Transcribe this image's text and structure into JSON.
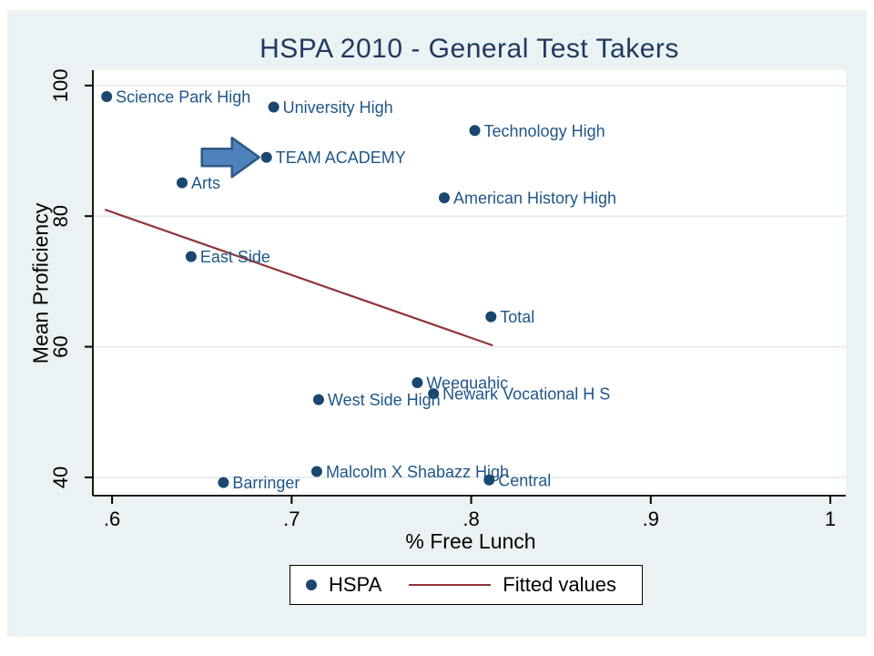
{
  "chart_data": {
    "type": "scatter",
    "title": "HSPA 2010 - General Test Takers",
    "xlabel": "% Free Lunch",
    "ylabel": "Mean Proficiency",
    "xlim": [
      0.5893,
      1.0086
    ],
    "ylim": [
      37.2,
      102.35
    ],
    "x_ticks": [
      ".6",
      ".7",
      ".8",
      ".9",
      "1"
    ],
    "x_tick_values": [
      0.6,
      0.7,
      0.8,
      0.9,
      1.0
    ],
    "y_ticks": [
      "40",
      "60",
      "80",
      "100"
    ],
    "y_tick_values": [
      40,
      60,
      80,
      100
    ],
    "grid": "horizontal-at-y-ticks",
    "series": [
      {
        "name": "HSPA",
        "type": "scatter",
        "marker": "dot",
        "color": "#1a476f",
        "label_color": "#1f5688",
        "points": [
          {
            "label": "Science Park High",
            "x": 0.597,
            "y": 98.3
          },
          {
            "label": "University High",
            "x": 0.69,
            "y": 96.7
          },
          {
            "label": "Technology High",
            "x": 0.802,
            "y": 93.1
          },
          {
            "label": "TEAM ACADEMY",
            "x": 0.686,
            "y": 89.0
          },
          {
            "label": "Arts",
            "x": 0.639,
            "y": 85.1
          },
          {
            "label": "American History High",
            "x": 0.785,
            "y": 82.8
          },
          {
            "label": "East Side",
            "x": 0.644,
            "y": 73.8
          },
          {
            "label": "Total",
            "x": 0.811,
            "y": 64.6
          },
          {
            "label": "Weequahic",
            "x": 0.77,
            "y": 54.5
          },
          {
            "label": "Newark Vocational H S",
            "x": 0.779,
            "y": 52.8
          },
          {
            "label": "West Side High",
            "x": 0.715,
            "y": 51.9
          },
          {
            "label": "Malcolm X Shabazz High",
            "x": 0.714,
            "y": 40.9
          },
          {
            "label": "Central",
            "x": 0.81,
            "y": 39.6
          },
          {
            "label": "Barringer",
            "x": 0.662,
            "y": 39.2
          }
        ]
      },
      {
        "name": "Fitted values",
        "type": "line",
        "color": "#90353b",
        "points": [
          {
            "x": 0.596,
            "y": 81.0
          },
          {
            "x": 0.812,
            "y": 60.2
          }
        ]
      }
    ],
    "annotation": {
      "type": "block-arrow",
      "points_at": "TEAM ACADEMY",
      "fill": "#4f81bd",
      "stroke": "#2e5984"
    },
    "legend": {
      "position": "bottom-center",
      "entries": [
        {
          "label": "HSPA",
          "marker": "dot",
          "color": "#1a476f"
        },
        {
          "label": "Fitted values",
          "marker": "line",
          "color": "#90353b"
        }
      ]
    }
  },
  "colors": {
    "canvas_bg": "#eaf2f3",
    "plot_bg": "#ffffff",
    "grid": "#e3ebee",
    "axis": "#000000",
    "title": "#21395f",
    "tick_label": "#000000"
  }
}
